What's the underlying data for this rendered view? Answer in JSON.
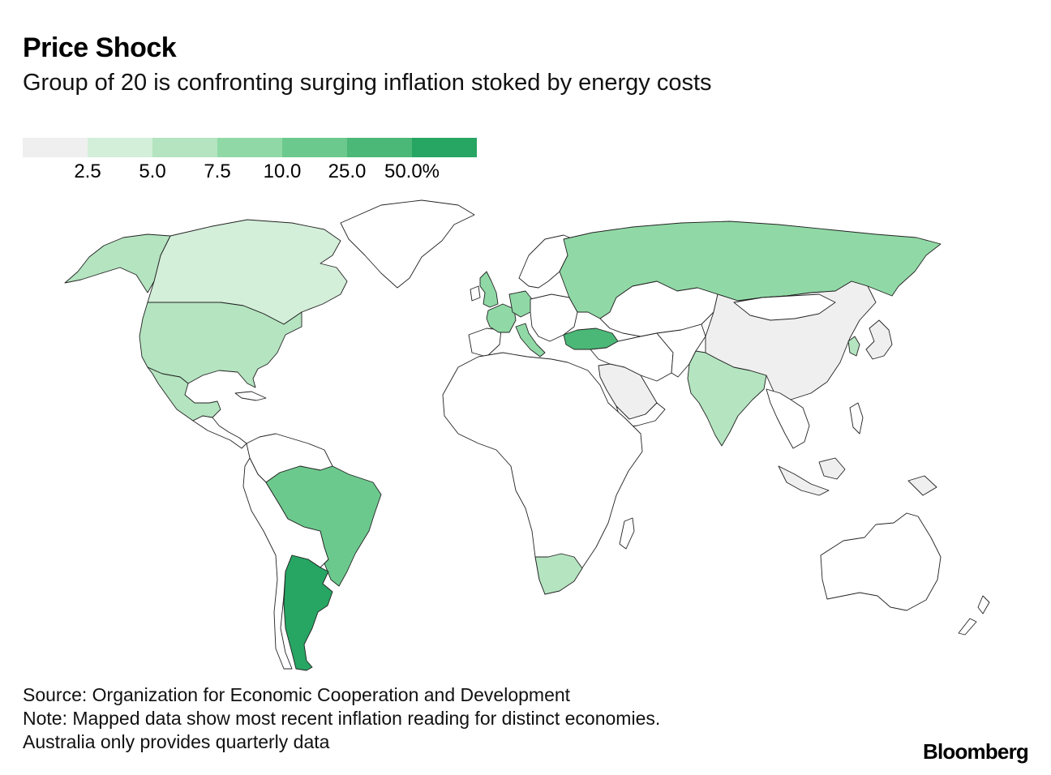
{
  "header": {
    "title": "Price Shock",
    "subtitle": "Group of 20 is confronting surging inflation stoked by energy costs"
  },
  "legend": {
    "colors": [
      "#efefef",
      "#d3eed9",
      "#b4e4c0",
      "#90d9a6",
      "#6cc98d",
      "#4bb877",
      "#27a563"
    ],
    "labels": [
      "2.5",
      "5.0",
      "7.5",
      "10.0",
      "25.0",
      "50.0%"
    ]
  },
  "map": {
    "no_data_color": "#ffffff",
    "countries": [
      {
        "name": "canada",
        "bin": 1
      },
      {
        "name": "usa",
        "bin": 2
      },
      {
        "name": "alaska",
        "bin": 2
      },
      {
        "name": "mexico",
        "bin": 2
      },
      {
        "name": "brazil",
        "bin": 4
      },
      {
        "name": "argentina",
        "bin": 6
      },
      {
        "name": "uk",
        "bin": 3
      },
      {
        "name": "france",
        "bin": 3
      },
      {
        "name": "germany",
        "bin": 3
      },
      {
        "name": "italy",
        "bin": 3
      },
      {
        "name": "russia",
        "bin": 3
      },
      {
        "name": "turkey",
        "bin": 5
      },
      {
        "name": "saudi-arabia",
        "bin": 0
      },
      {
        "name": "india",
        "bin": 2
      },
      {
        "name": "china",
        "bin": 0
      },
      {
        "name": "japan",
        "bin": 0
      },
      {
        "name": "south-korea",
        "bin": 2
      },
      {
        "name": "indonesia",
        "bin": 0
      },
      {
        "name": "south-africa",
        "bin": 2
      },
      {
        "name": "australia",
        "bin": null
      }
    ]
  },
  "footer": {
    "source": "Source: Organization for Economic Cooperation and Development",
    "note": "Note: Mapped data show most recent inflation reading for distinct economies.",
    "note2": "Australia only provides quarterly data"
  },
  "brand": "Bloomberg"
}
